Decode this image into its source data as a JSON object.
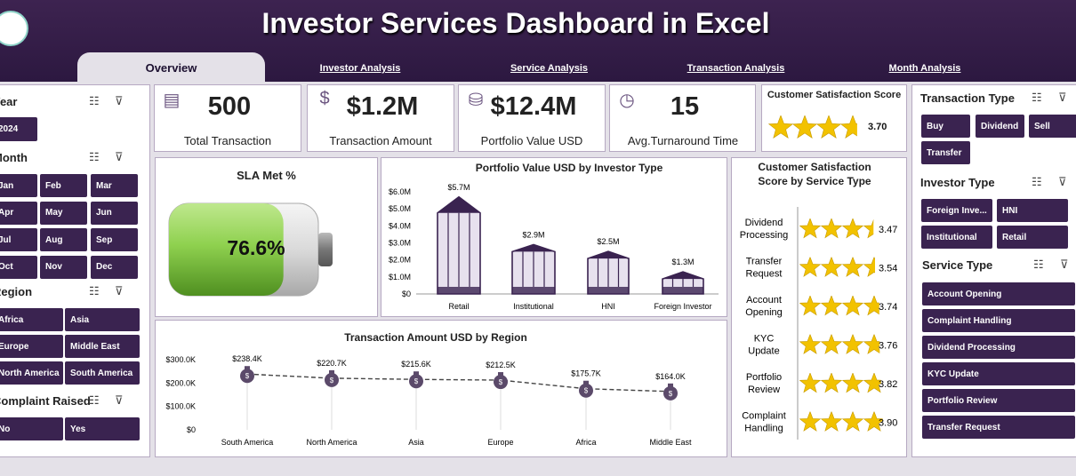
{
  "header": {
    "title": "Investor Services Dashboard in Excel"
  },
  "tabs": [
    "Overview",
    "Investor Analysis",
    "Service Analysis",
    "Transaction Analysis",
    "Month Analysis"
  ],
  "slicers": {
    "year": {
      "title": "Year",
      "items": [
        "2024"
      ]
    },
    "month": {
      "title": "Month",
      "items": [
        "Jan",
        "Feb",
        "Mar",
        "Apr",
        "May",
        "Jun",
        "Jul",
        "Aug",
        "Sep",
        "Oct",
        "Nov",
        "Dec"
      ]
    },
    "region": {
      "title": "Region",
      "items": [
        "Africa",
        "Asia",
        "Europe",
        "Middle East",
        "North America",
        "South America"
      ]
    },
    "complaint": {
      "title": "Complaint Raised",
      "items": [
        "No",
        "Yes"
      ]
    },
    "transaction_type": {
      "title": "Transaction Type",
      "items": [
        "Buy",
        "Dividend",
        "Sell",
        "Transfer"
      ]
    },
    "investor_type": {
      "title": "Investor Type",
      "items": [
        "Foreign Inve...",
        "HNI",
        "Institutional",
        "Retail"
      ]
    },
    "service_type": {
      "title": "Service Type",
      "items": [
        "Account Opening",
        "Complaint Handling",
        "Dividend Processing",
        "KYC Update",
        "Portfolio Review",
        "Transfer Request"
      ]
    }
  },
  "kpis": [
    {
      "value": "500",
      "label": "Total Transaction",
      "icon": "clipboard-icon"
    },
    {
      "value": "$1.2M",
      "label": "Transaction Amount",
      "icon": "money-bag-icon"
    },
    {
      "value": "$12.4M",
      "label": "Portfolio Value USD",
      "icon": "cash-icon"
    },
    {
      "value": "15",
      "label": "Avg.Turnaround Time",
      "icon": "clock-icon"
    }
  ],
  "csat": {
    "title": "Customer Satisfaction Score",
    "value": 3.7,
    "value_label": "3.70"
  },
  "sla": {
    "title": "SLA Met %",
    "value": 0.766,
    "value_label": "76.6%"
  },
  "colors": {
    "header": "#2c1840",
    "accent": "#3a2350",
    "star": "#f2c200",
    "battery": "#8fd14f"
  },
  "chart_data": [
    {
      "type": "bar",
      "title": "Portfolio Value USD by Investor Type",
      "categories": [
        "Retail",
        "Institutional",
        "HNI",
        "Foreign Investor"
      ],
      "values": [
        5.7,
        2.9,
        2.5,
        1.3
      ],
      "data_labels": [
        "$5.7M",
        "$2.9M",
        "$2.5M",
        "$1.3M"
      ],
      "ylim": [
        0,
        6.0
      ],
      "yticks": [
        "$0",
        "$1.0M",
        "$2.0M",
        "$3.0M",
        "$4.0M",
        "$5.0M",
        "$6.0M"
      ]
    },
    {
      "type": "line",
      "title": "Transaction Amount USD by Region",
      "categories": [
        "South America",
        "North America",
        "Asia",
        "Europe",
        "Africa",
        "Middle East"
      ],
      "values": [
        238.4,
        220.7,
        215.6,
        212.5,
        175.7,
        164.0
      ],
      "data_labels": [
        "$238.4K",
        "$220.7K",
        "$215.6K",
        "$212.5K",
        "$175.7K",
        "$164.0K"
      ],
      "ylim": [
        0,
        300
      ],
      "yticks": [
        "$0",
        "$100.0K",
        "$200.0K",
        "$300.0K"
      ]
    },
    {
      "type": "bar",
      "title": "Customer Satisfaction Score by Service Type",
      "categories": [
        "Dividend Processing",
        "Transfer Request",
        "Account Opening",
        "KYC Update",
        "Portfolio Review",
        "Complaint Handling"
      ],
      "values": [
        3.47,
        3.54,
        3.74,
        3.76,
        3.82,
        3.9
      ],
      "data_labels": [
        "3.47",
        "3.54",
        "3.74",
        "3.76",
        "3.82",
        "3.90"
      ],
      "max": 5
    }
  ]
}
